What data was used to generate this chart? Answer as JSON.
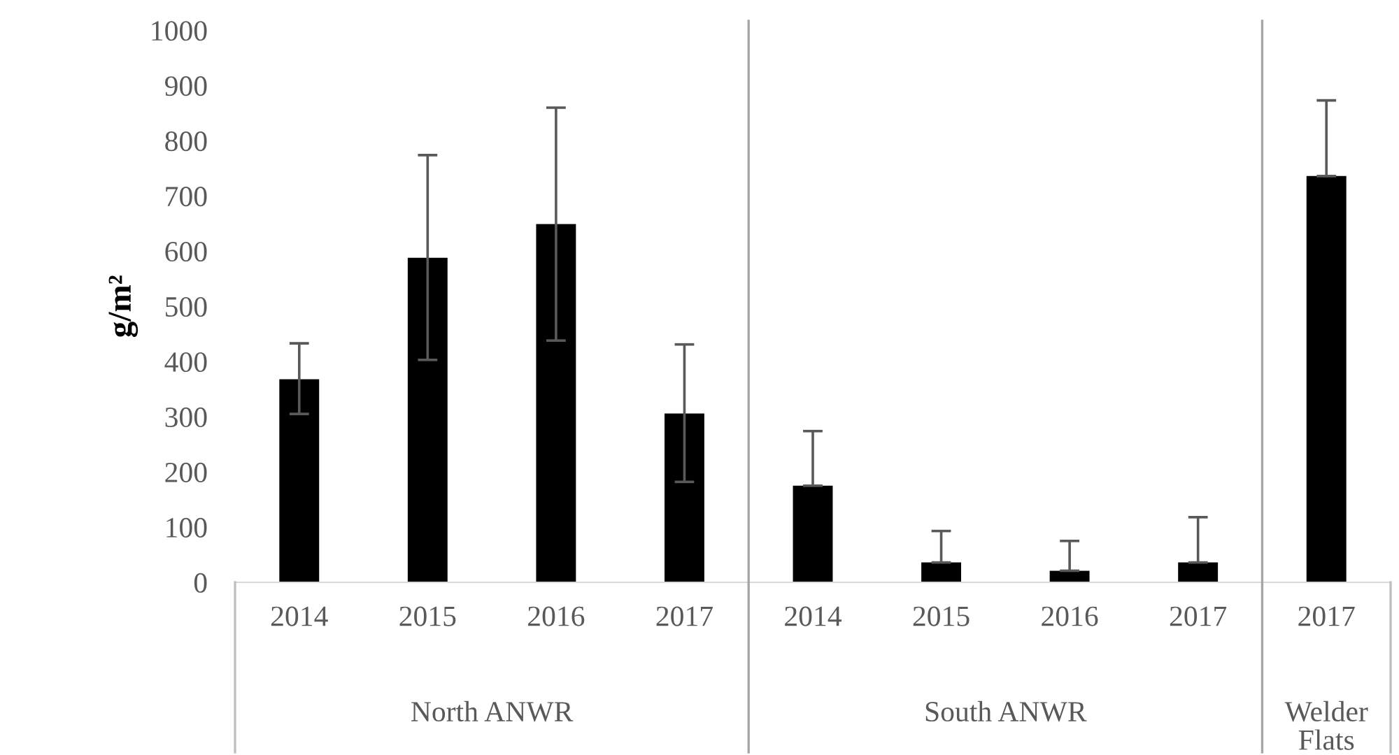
{
  "chart_data": {
    "type": "bar",
    "ylabel": "g/m²",
    "categories": [
      "2014",
      "2015",
      "2016",
      "2017",
      "2014",
      "2015",
      "2016",
      "2017",
      "2017"
    ],
    "values": [
      368,
      588,
      649,
      306,
      175,
      36,
      21,
      36,
      736
    ],
    "errors": [
      [
        305,
        433
      ],
      [
        403,
        774
      ],
      [
        438,
        860
      ],
      [
        182,
        431
      ],
      [
        175,
        274
      ],
      [
        36,
        93
      ],
      [
        21,
        75
      ],
      [
        36,
        118
      ],
      [
        736,
        873
      ]
    ],
    "color": "#000000",
    "annotations": [
      "North ANWR",
      "South ANWR",
      "Welder Flats"
    ],
    "ylim": [
      0,
      1000
    ],
    "yticks": [
      0,
      100,
      200,
      300,
      400,
      500,
      600,
      700,
      800,
      900,
      1000
    ],
    "grid": false,
    "legend": false
  }
}
